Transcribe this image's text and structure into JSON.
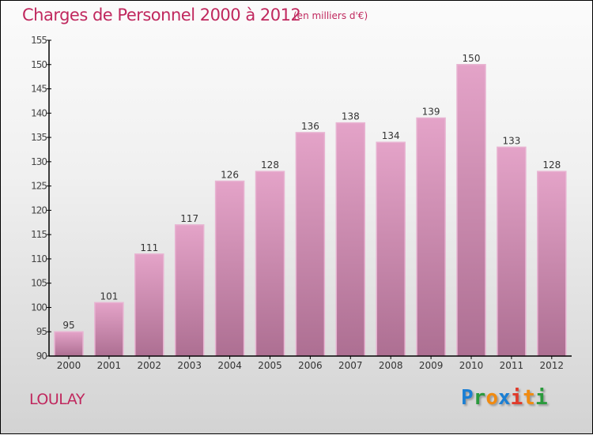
{
  "chart_data": {
    "type": "bar",
    "title": "Charges de Personnel 2000 à 2012",
    "subtitle": "(en milliers d'€)",
    "categories": [
      "2000",
      "2001",
      "2002",
      "2003",
      "2004",
      "2005",
      "2006",
      "2007",
      "2008",
      "2009",
      "2010",
      "2011",
      "2012"
    ],
    "values": [
      95,
      101,
      111,
      117,
      126,
      128,
      136,
      138,
      134,
      139,
      150,
      133,
      128
    ],
    "ylim": [
      90,
      155
    ],
    "yticks": [
      90,
      95,
      100,
      105,
      110,
      115,
      120,
      125,
      130,
      135,
      140,
      145,
      150,
      155
    ],
    "xlabel": "",
    "ylabel": "",
    "bar_color": "#d48db5",
    "grid": false
  },
  "location": "LOULAY",
  "logo": {
    "letters": [
      "P",
      "r",
      "o",
      "x",
      "i",
      "t",
      "i"
    ],
    "colors": [
      "#1a7fd4",
      "#2a9a3c",
      "#f08a10",
      "#1a7fd4",
      "#e03a2a",
      "#f08a10",
      "#2a9a3c"
    ]
  }
}
